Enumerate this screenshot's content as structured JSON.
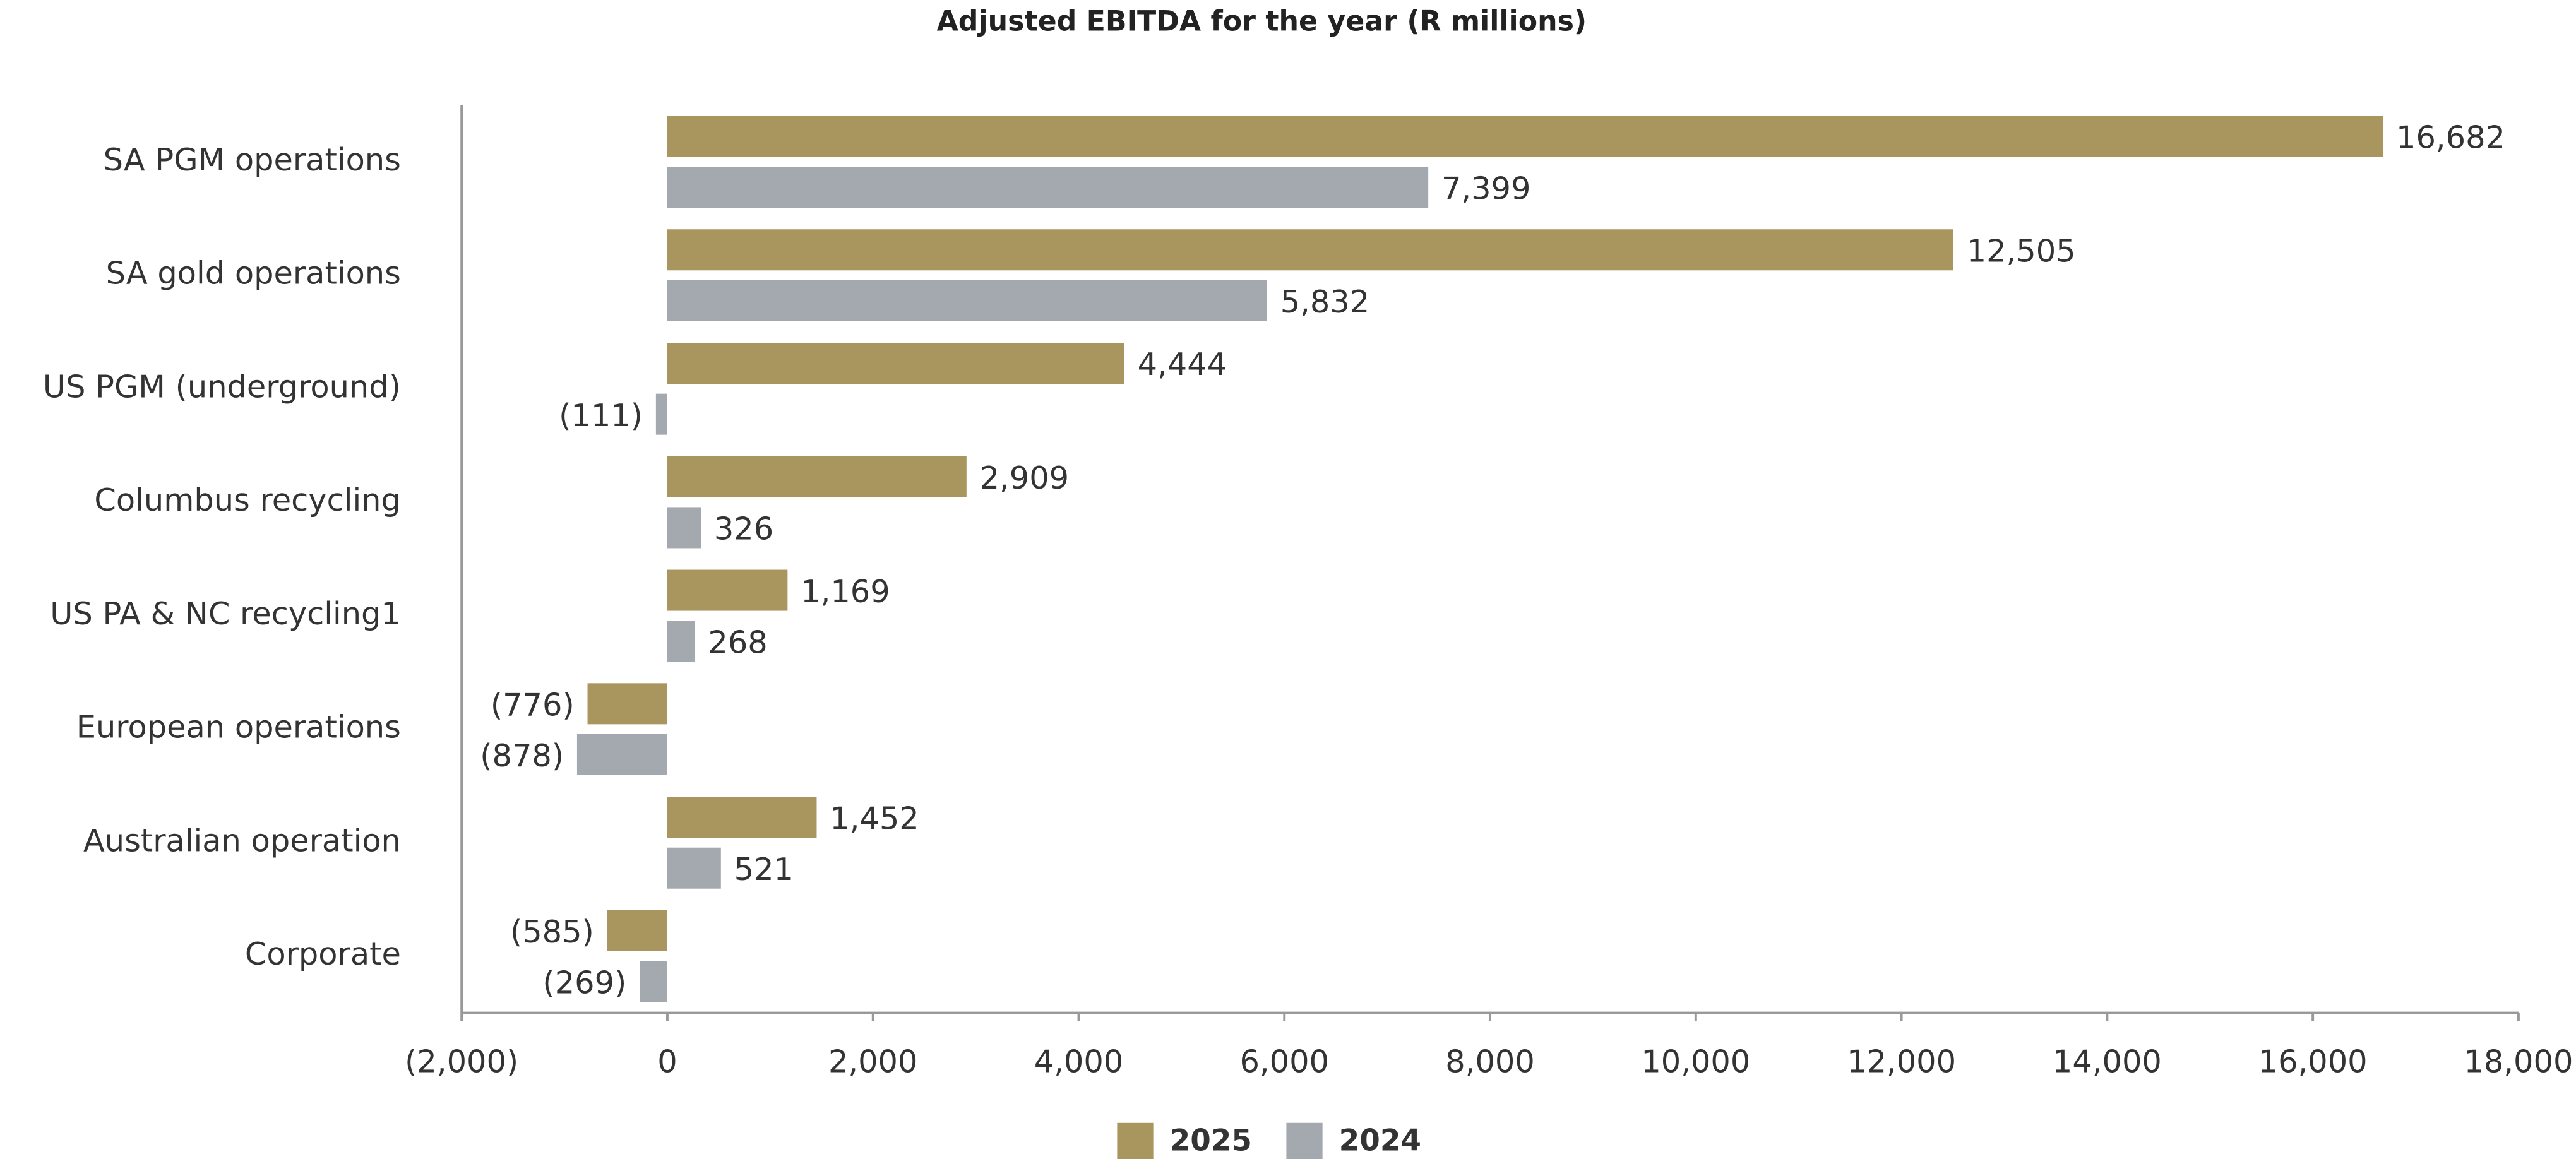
{
  "chart_data": {
    "type": "hbar",
    "title": "Adjusted EBITDA for the year (R millions)",
    "categories": [
      "SA PGM operations",
      "SA gold operations",
      "US PGM (underground)",
      "Columbus recycling",
      "US PA & NC recycling1",
      "European operations",
      "Australian operation",
      "Corporate"
    ],
    "series": [
      {
        "name": "2025",
        "color": "#a8965e",
        "values": [
          16682,
          12505,
          4444,
          2909,
          1169,
          -776,
          1452,
          -585
        ],
        "value_labels": [
          "16,682",
          "12,505",
          "4,444",
          "2,909",
          "1,169",
          "(776)",
          "1,452",
          "(585)"
        ]
      },
      {
        "name": "2024",
        "color": "#a3a9ae",
        "values": [
          7399,
          5832,
          -111,
          326,
          268,
          -878,
          521,
          -269
        ],
        "value_labels": [
          "7,399",
          "5,832",
          "(111)",
          "326",
          "268",
          "(878)",
          "521",
          "(269)"
        ]
      }
    ],
    "xlim": [
      -2000,
      18000
    ],
    "xticks": [
      {
        "value": -2000,
        "label": "(2,000)"
      },
      0,
      {
        "value": 2000,
        "label": "2,000"
      },
      {
        "value": 4000,
        "label": "4,000"
      },
      {
        "value": 6000,
        "label": "6,000"
      },
      {
        "value": 8000,
        "label": "8,000"
      },
      {
        "value": 10000,
        "label": "10,000"
      },
      {
        "value": 12000,
        "label": "12,000"
      },
      {
        "value": 14000,
        "label": "14,000"
      },
      {
        "value": 16000,
        "label": "16,000"
      },
      {
        "value": 18000,
        "label": "18,000"
      }
    ],
    "legend": "bottom"
  }
}
